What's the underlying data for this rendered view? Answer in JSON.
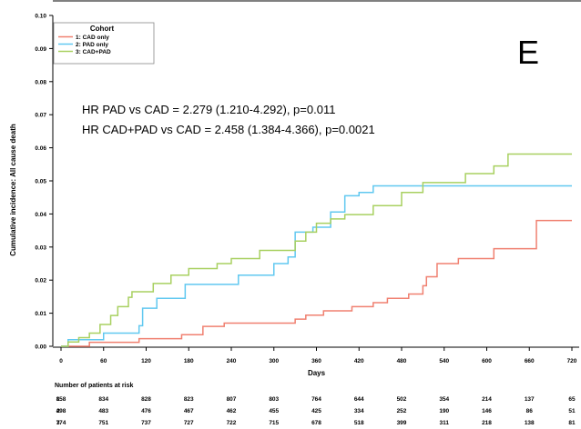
{
  "chart_data": {
    "type": "line",
    "panel_label": "E",
    "xlabel": "Days",
    "ylabel": "Cumulative incidence: All cause death",
    "xlim": [
      0,
      720
    ],
    "ylim": [
      0,
      0.1
    ],
    "xticks": [
      0,
      60,
      120,
      180,
      240,
      300,
      360,
      420,
      480,
      540,
      600,
      660,
      720
    ],
    "xtick_labels": [
      "0",
      "60",
      "120",
      "180",
      "240",
      "300",
      "360",
      "420",
      "480",
      "540",
      "600",
      "660",
      "720"
    ],
    "yticks": [
      0,
      0.01,
      0.02,
      0.03,
      0.04,
      0.05,
      0.06,
      0.07,
      0.08,
      0.09,
      0.1
    ],
    "ytick_labels": [
      "0.00",
      "0.01",
      "0.02",
      "0.03",
      "0.04",
      "0.05",
      "0.06",
      "0.07",
      "0.08",
      "0.09",
      "0.10"
    ],
    "legend": {
      "title": "Cohort",
      "position": "top-left",
      "entries": [
        "1: CAD only",
        "2: PAD only",
        "3: CAD+PAD"
      ]
    },
    "annotations": [
      "HR PAD vs CAD = 2.279 (1.210-4.292), p=0.011",
      "HR CAD+PAD vs CAD = 2.458 (1.384-4.366), p=0.0021"
    ],
    "series": [
      {
        "name": "1: CAD only",
        "color": "#f08070",
        "points": [
          [
            0,
            0
          ],
          [
            40,
            0.0012
          ],
          [
            80,
            0.0012
          ],
          [
            110,
            0.0023
          ],
          [
            170,
            0.0035
          ],
          [
            200,
            0.006
          ],
          [
            230,
            0.007
          ],
          [
            300,
            0.007
          ],
          [
            330,
            0.0082
          ],
          [
            345,
            0.0094
          ],
          [
            370,
            0.0107
          ],
          [
            410,
            0.012
          ],
          [
            440,
            0.0132
          ],
          [
            460,
            0.0145
          ],
          [
            490,
            0.0158
          ],
          [
            510,
            0.0183
          ],
          [
            515,
            0.021
          ],
          [
            530,
            0.025
          ],
          [
            560,
            0.0265
          ],
          [
            610,
            0.0295
          ],
          [
            670,
            0.038
          ],
          [
            720,
            0.038
          ]
        ]
      },
      {
        "name": "2: PAD only",
        "color": "#60c8f0",
        "points": [
          [
            0,
            0
          ],
          [
            10,
            0.002
          ],
          [
            40,
            0.002
          ],
          [
            60,
            0.004
          ],
          [
            110,
            0.0062
          ],
          [
            115,
            0.0115
          ],
          [
            135,
            0.0145
          ],
          [
            175,
            0.0187
          ],
          [
            240,
            0.0187
          ],
          [
            250,
            0.0215
          ],
          [
            300,
            0.025
          ],
          [
            320,
            0.027
          ],
          [
            330,
            0.0345
          ],
          [
            355,
            0.036
          ],
          [
            380,
            0.0406
          ],
          [
            400,
            0.0455
          ],
          [
            420,
            0.0465
          ],
          [
            440,
            0.0485
          ],
          [
            720,
            0.0485
          ]
        ]
      },
      {
        "name": "3: CAD+PAD",
        "color": "#a8d060",
        "points": [
          [
            0,
            0
          ],
          [
            10,
            0.0013
          ],
          [
            25,
            0.0026
          ],
          [
            40,
            0.004
          ],
          [
            55,
            0.0066
          ],
          [
            70,
            0.0093
          ],
          [
            80,
            0.012
          ],
          [
            95,
            0.0148
          ],
          [
            100,
            0.0165
          ],
          [
            130,
            0.019
          ],
          [
            155,
            0.0215
          ],
          [
            180,
            0.0235
          ],
          [
            220,
            0.025
          ],
          [
            240,
            0.0265
          ],
          [
            280,
            0.029
          ],
          [
            330,
            0.0318
          ],
          [
            345,
            0.0345
          ],
          [
            360,
            0.0372
          ],
          [
            380,
            0.0385
          ],
          [
            400,
            0.0398
          ],
          [
            440,
            0.0425
          ],
          [
            480,
            0.0465
          ],
          [
            510,
            0.0495
          ],
          [
            570,
            0.0522
          ],
          [
            610,
            0.0545
          ],
          [
            630,
            0.0581
          ],
          [
            720,
            0.0581
          ]
        ]
      }
    ],
    "risk_table": {
      "title": "Number of patients at risk",
      "rows": [
        {
          "id": "1",
          "values": [
            "858",
            "834",
            "828",
            "823",
            "807",
            "803",
            "764",
            "644",
            "502",
            "354",
            "214",
            "137",
            "65"
          ]
        },
        {
          "id": "2",
          "values": [
            "498",
            "483",
            "476",
            "467",
            "462",
            "455",
            "425",
            "334",
            "252",
            "190",
            "146",
            "86",
            "51"
          ]
        },
        {
          "id": "3",
          "values": [
            "774",
            "751",
            "737",
            "727",
            "722",
            "715",
            "678",
            "518",
            "399",
            "311",
            "218",
            "138",
            "81"
          ]
        }
      ]
    }
  }
}
